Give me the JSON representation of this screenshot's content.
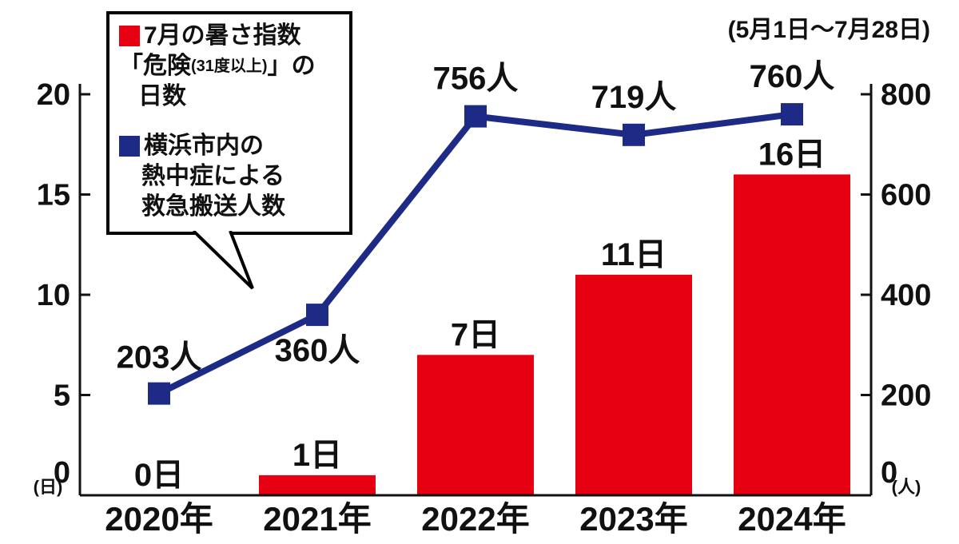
{
  "legend": {
    "bars": {
      "line1": "7月の暑さ指数",
      "line2_pre": "「危険",
      "line2_small": "(31度以上)",
      "line2_post": "」の",
      "line3": "日数"
    },
    "line": {
      "line1": "横浜市内の",
      "line2": "熱中症による",
      "line3": "救急搬送人数"
    }
  },
  "chart_data": {
    "type": "combo-bar-line",
    "categories": [
      "2020年",
      "2021年",
      "2022年",
      "2023年",
      "2024年"
    ],
    "series": [
      {
        "name": "7月の暑さ指数「危険(31度以上)」の日数",
        "chart": "bar",
        "axis": "left",
        "color": "#e60012",
        "values": [
          0,
          1,
          7,
          11,
          16
        ],
        "labels": [
          "0日",
          "1日",
          "7日",
          "11日",
          "16日"
        ]
      },
      {
        "name": "横浜市内の熱中症による救急搬送人数",
        "chart": "line",
        "axis": "right",
        "color": "#1d2b87",
        "values": [
          203,
          360,
          756,
          719,
          760
        ],
        "labels": [
          "203人",
          "360人",
          "756人",
          "719人",
          "760人"
        ],
        "label_offsets": [
          -32,
          58,
          -34,
          -34,
          -34
        ]
      }
    ],
    "left_axis": {
      "unit": "(日)",
      "ticks": [
        0,
        5,
        10,
        15,
        20
      ],
      "max": 20
    },
    "right_axis": {
      "unit": "(人)",
      "ticks": [
        0,
        200,
        400,
        600,
        800
      ],
      "max": 800
    },
    "annotation": "(5月1日〜7月28日)",
    "grid": false,
    "legend_position": "top-left",
    "marker": "square"
  }
}
